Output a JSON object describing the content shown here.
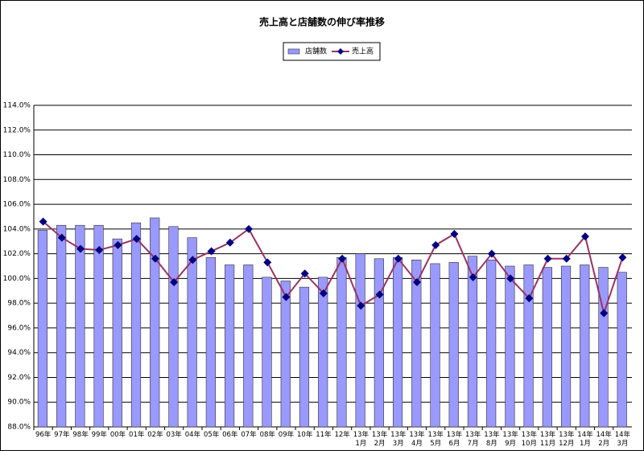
{
  "chart_data": {
    "type": "bar_line",
    "title": "売上高と店舗数の伸び率推移",
    "categories": [
      "96年",
      "97年",
      "98年",
      "99年",
      "00年",
      "01年",
      "02年",
      "03年",
      "04年",
      "05年",
      "06年",
      "07年",
      "08年",
      "09年",
      "10年",
      "11年",
      "12年",
      "13年\n1月",
      "13年\n2月",
      "13年\n3月",
      "13年\n4月",
      "13年\n5月",
      "13年\n6月",
      "13年\n7月",
      "13年\n8月",
      "13年\n9月",
      "13年\n10月",
      "13年\n11月",
      "13年\n12月",
      "14年\n1月",
      "14年\n2月",
      "14年\n3月"
    ],
    "series": [
      {
        "name": "店舗数",
        "kind": "bar",
        "color": "#9999ff",
        "values": [
          103.9,
          104.3,
          104.3,
          104.3,
          103.2,
          104.5,
          104.9,
          104.2,
          103.3,
          101.7,
          101.1,
          101.1,
          100.1,
          99.8,
          99.3,
          100.1,
          101.7,
          102.0,
          101.6,
          101.7,
          101.5,
          101.2,
          101.3,
          101.8,
          101.5,
          101.0,
          101.1,
          100.9,
          101.0,
          101.1,
          100.9,
          100.5
        ]
      },
      {
        "name": "売上高",
        "kind": "line",
        "color": "#993366",
        "marker_color": "#000080",
        "values": [
          104.6,
          103.3,
          102.4,
          102.3,
          102.7,
          103.2,
          101.6,
          99.7,
          101.5,
          102.2,
          102.9,
          104.0,
          101.3,
          98.5,
          100.4,
          98.8,
          101.6,
          97.8,
          98.7,
          101.6,
          99.7,
          102.7,
          103.6,
          100.1,
          102.0,
          100.0,
          98.4,
          101.6,
          101.6,
          103.4,
          97.2,
          101.7
        ]
      }
    ],
    "ylim": [
      88,
      114
    ],
    "yticks": [
      {
        "value": 88,
        "label": "88.0%"
      },
      {
        "value": 90,
        "label": "90.0%"
      },
      {
        "value": 92,
        "label": "92.0%"
      },
      {
        "value": 94,
        "label": "94.0%"
      },
      {
        "value": 96,
        "label": "96.0%"
      },
      {
        "value": 98,
        "label": "98.0%"
      },
      {
        "value": 100,
        "label": "100.0%"
      },
      {
        "value": 102,
        "label": "102.0%"
      },
      {
        "value": 104,
        "label": "104.0%"
      },
      {
        "value": 106,
        "label": "106.0%"
      },
      {
        "value": 108,
        "label": "108.0%"
      },
      {
        "value": 110,
        "label": "110.0%"
      },
      {
        "value": 112,
        "label": "112.0%"
      },
      {
        "value": 114,
        "label": "114.0%"
      }
    ],
    "grid": true
  }
}
